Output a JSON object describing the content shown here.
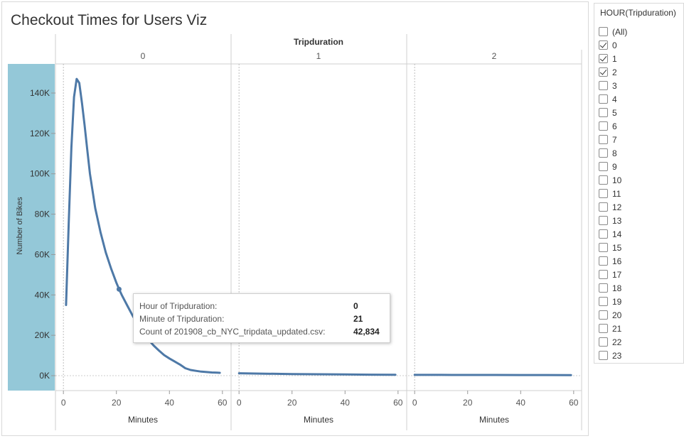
{
  "title": "Checkout Times for Users Viz",
  "chart_data": {
    "type": "line",
    "column_header": "Tripduration",
    "panels": [
      "0",
      "1",
      "2"
    ],
    "ylabel": "Number of Bikes",
    "xlabel": "Minutes",
    "ylim": [
      0,
      150000
    ],
    "yticks": [
      0,
      20000,
      40000,
      60000,
      80000,
      100000,
      120000,
      140000
    ],
    "ytick_labels": [
      "0K",
      "20K",
      "40K",
      "60K",
      "80K",
      "100K",
      "120K",
      "140K"
    ],
    "xlim": [
      -3,
      63
    ],
    "xticks": [
      0,
      20,
      40,
      60
    ],
    "xtick_labels": [
      "0",
      "20",
      "40",
      "60"
    ],
    "line_color": "#4e79a7",
    "band_color": "#94c8d8",
    "series": [
      {
        "panel": "0",
        "x": [
          1,
          2,
          3,
          4,
          5,
          6,
          7,
          8,
          9,
          10,
          12,
          14,
          16,
          18,
          20,
          21,
          22,
          24,
          26,
          28,
          30,
          32,
          34,
          36,
          38,
          40,
          42,
          44,
          46,
          48,
          50,
          52,
          54,
          56,
          58,
          59
        ],
        "y": [
          35000,
          75000,
          113000,
          138000,
          147000,
          145000,
          135000,
          124000,
          112000,
          100000,
          83000,
          71000,
          61000,
          53000,
          46000,
          42834,
          40000,
          35000,
          30000,
          25500,
          21500,
          18000,
          15000,
          12500,
          10200,
          8500,
          7000,
          5500,
          3700,
          2800,
          2400,
          2000,
          1800,
          1600,
          1500,
          1400
        ]
      },
      {
        "panel": "1",
        "x": [
          0,
          10,
          20,
          30,
          40,
          50,
          59
        ],
        "y": [
          1200,
          1000,
          800,
          700,
          600,
          500,
          450
        ]
      },
      {
        "panel": "2",
        "x": [
          0,
          10,
          20,
          30,
          40,
          50,
          59
        ],
        "y": [
          400,
          380,
          360,
          340,
          320,
          300,
          290
        ]
      }
    ],
    "highlight": {
      "panel": "0",
      "x": 21,
      "y": 42834
    }
  },
  "tooltip": {
    "rows": [
      {
        "label": "Hour of Tripduration:",
        "value": "0"
      },
      {
        "label": "Minute of Tripduration:",
        "value": "21"
      },
      {
        "label": "Count of 201908_cb_NYC_tripdata_updated.csv:",
        "value": "42,834"
      }
    ]
  },
  "filter": {
    "title": "HOUR(Tripduration)",
    "items": [
      {
        "label": "(All)",
        "checked": false
      },
      {
        "label": "0",
        "checked": true
      },
      {
        "label": "1",
        "checked": true
      },
      {
        "label": "2",
        "checked": true
      },
      {
        "label": "3",
        "checked": false
      },
      {
        "label": "4",
        "checked": false
      },
      {
        "label": "5",
        "checked": false
      },
      {
        "label": "6",
        "checked": false
      },
      {
        "label": "7",
        "checked": false
      },
      {
        "label": "8",
        "checked": false
      },
      {
        "label": "9",
        "checked": false
      },
      {
        "label": "10",
        "checked": false
      },
      {
        "label": "11",
        "checked": false
      },
      {
        "label": "12",
        "checked": false
      },
      {
        "label": "13",
        "checked": false
      },
      {
        "label": "14",
        "checked": false
      },
      {
        "label": "15",
        "checked": false
      },
      {
        "label": "16",
        "checked": false
      },
      {
        "label": "17",
        "checked": false
      },
      {
        "label": "18",
        "checked": false
      },
      {
        "label": "19",
        "checked": false
      },
      {
        "label": "20",
        "checked": false
      },
      {
        "label": "21",
        "checked": false
      },
      {
        "label": "22",
        "checked": false
      },
      {
        "label": "23",
        "checked": false
      }
    ]
  }
}
